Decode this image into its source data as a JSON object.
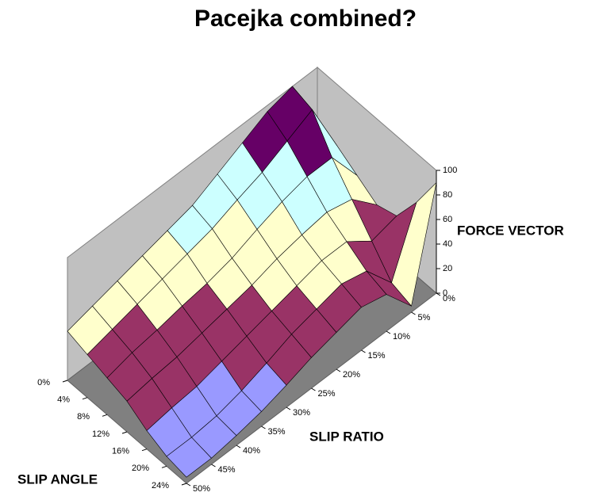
{
  "chart_data": {
    "type": "surface",
    "title": "Pacejka combined?",
    "z_label": "FORCE VECTOR",
    "x_label": "SLIP RATIO",
    "y_label": "SLIP ANGLE",
    "x": [
      {
        "value": 0,
        "label": "0%"
      },
      {
        "value": 5,
        "label": "5%"
      },
      {
        "value": 10,
        "label": "10%"
      },
      {
        "value": 15,
        "label": "15%"
      },
      {
        "value": 20,
        "label": "20%"
      },
      {
        "value": 25,
        "label": "25%"
      },
      {
        "value": 30,
        "label": "30%"
      },
      {
        "value": 35,
        "label": "35%"
      },
      {
        "value": 40,
        "label": "40%"
      },
      {
        "value": 45,
        "label": "45%"
      },
      {
        "value": 50,
        "label": "50%"
      }
    ],
    "y": [
      {
        "value": 0,
        "label": "0%"
      },
      {
        "value": 4,
        "label": "4%"
      },
      {
        "value": 8,
        "label": "8%"
      },
      {
        "value": 12,
        "label": "12%"
      },
      {
        "value": 16,
        "label": "16%"
      },
      {
        "value": 20,
        "label": "20%"
      },
      {
        "value": 24,
        "label": "24%"
      }
    ],
    "z": [
      [
        55,
        100,
        95,
        85,
        75,
        65,
        60,
        55,
        50,
        45,
        40
      ],
      [
        50,
        95,
        85,
        75,
        68,
        60,
        55,
        50,
        45,
        40,
        35
      ],
      [
        40,
        70,
        70,
        65,
        58,
        50,
        45,
        42,
        38,
        35,
        30
      ],
      [
        30,
        50,
        55,
        52,
        48,
        42,
        38,
        34,
        30,
        28,
        25
      ],
      [
        35,
        30,
        45,
        45,
        40,
        35,
        30,
        25,
        20,
        18,
        15
      ],
      [
        60,
        10,
        35,
        40,
        35,
        30,
        22,
        15,
        10,
        8,
        8
      ],
      [
        90,
        5,
        30,
        35,
        30,
        25,
        18,
        12,
        8,
        5,
        5
      ]
    ],
    "zlim": [
      0,
      100
    ],
    "zticks": [
      0,
      20,
      40,
      60,
      80,
      100
    ],
    "band_colors": [
      "#9999ff",
      "#993366",
      "#ffffcc",
      "#ccffff",
      "#660066"
    ]
  }
}
